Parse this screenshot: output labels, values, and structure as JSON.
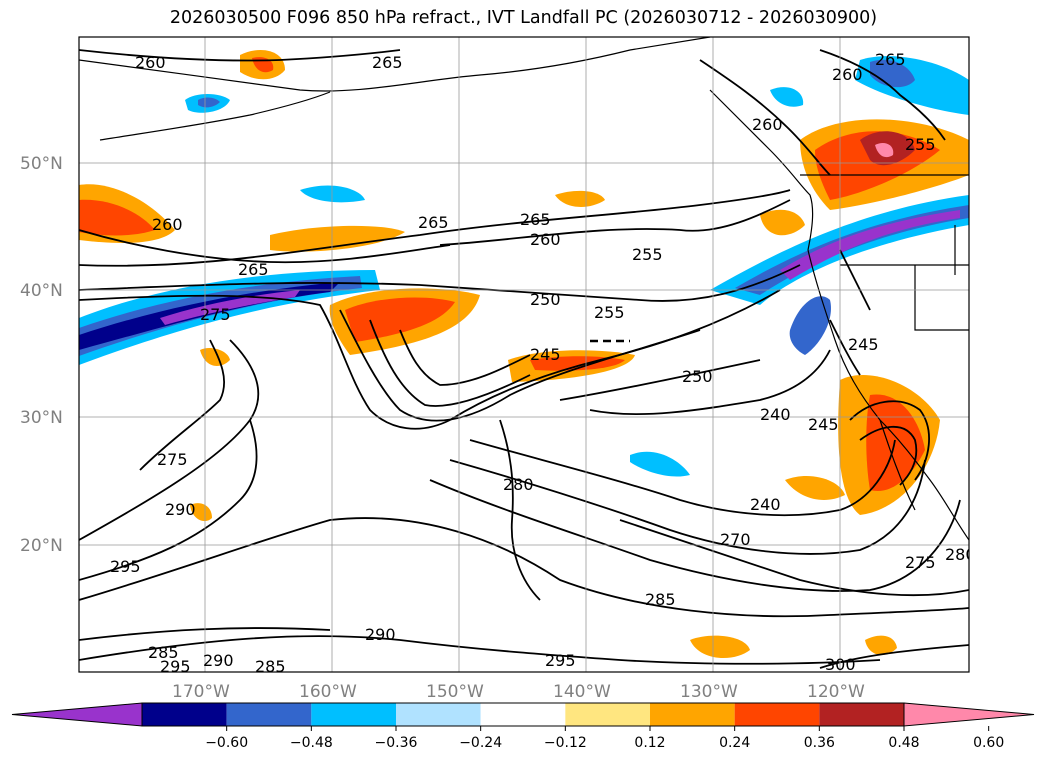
{
  "title": "2026030500 F096 850 hPa refract., IVT Landfall PC (2026030712 - 2026030900)",
  "map": {
    "lat_labels": [
      "50°N",
      "40°N",
      "30°N",
      "20°N"
    ],
    "lon_labels": [
      "170°W",
      "160°W",
      "150°W",
      "140°W",
      "130°W",
      "120°W"
    ],
    "contour_labels": [
      "260",
      "265",
      "260",
      "265",
      "255",
      "260",
      "265",
      "265",
      "260",
      "255",
      "265",
      "275",
      "255",
      "245",
      "250",
      "240",
      "245",
      "250",
      "280",
      "275",
      "290",
      "295",
      "240",
      "270",
      "285",
      "275",
      "280",
      "290",
      "285",
      "295",
      "290",
      "285",
      "295",
      "300",
      "260",
      "245"
    ]
  },
  "colorbar": {
    "ticks": [
      "−0.60",
      "−0.48",
      "−0.36",
      "−0.24",
      "−0.12",
      "0.12",
      "0.24",
      "0.36",
      "0.48",
      "0.60"
    ],
    "colors": [
      "#9933cc",
      "#00008b",
      "#3366cc",
      "#00bfff",
      "#b0e2ff",
      "#ffffff",
      "#ffe680",
      "#ffa500",
      "#ff4500",
      "#b22222",
      "#ff88aa"
    ]
  }
}
